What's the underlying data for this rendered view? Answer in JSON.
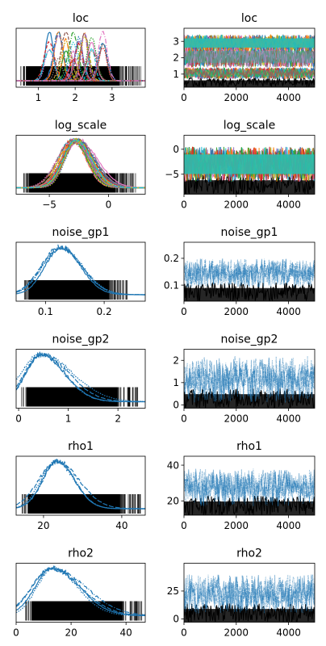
{
  "figure": {
    "title": ""
  },
  "chart_data": [
    {
      "panel": "density",
      "type": "line",
      "title": "loc",
      "x_range": [
        0.4,
        3.9
      ],
      "x_ticks": [
        1,
        2,
        3
      ],
      "y_ticks": [],
      "n_chains": 4,
      "n_components": 8,
      "series_colors": [
        "#1f77b4",
        "#ff7f0e",
        "#2ca02c",
        "#d62728",
        "#9467bd",
        "#8c564b",
        "#e377c2",
        "#7f7f7f",
        "#bcbd22",
        "#17becf"
      ],
      "component_centers": [
        1.3,
        1.55,
        1.75,
        1.95,
        2.1,
        2.25,
        2.45,
        2.75
      ],
      "rug_range": [
        0.5,
        3.8
      ]
    },
    {
      "panel": "trace",
      "type": "line",
      "title": "loc",
      "x_range": [
        0,
        5000
      ],
      "y_range": [
        0.2,
        3.8
      ],
      "x_ticks": [
        0,
        2000,
        4000
      ],
      "y_ticks": [
        1,
        2,
        3
      ],
      "bands": [
        [
          0.7,
          1.4
        ],
        [
          1.4,
          2.7
        ],
        [
          2.4,
          3.4
        ]
      ],
      "divergence_band": [
        0.2,
        0.8
      ]
    },
    {
      "panel": "density",
      "type": "line",
      "title": "log_scale",
      "x_range": [
        -7.8,
        3.1
      ],
      "x_ticks": [
        -5,
        0
      ],
      "y_ticks": [],
      "mean": -2.8,
      "sd": 1.1,
      "series_colors": [
        "#1f77b4",
        "#ff7f0e",
        "#2ca02c",
        "#d62728",
        "#9467bd",
        "#8c564b",
        "#e377c2",
        "#7f7f7f",
        "#bcbd22",
        "#17becf"
      ],
      "rug_range": [
        -7.2,
        2.3
      ]
    },
    {
      "panel": "trace",
      "type": "line",
      "title": "log_scale",
      "x_range": [
        0,
        5000
      ],
      "y_range": [
        -9,
        2.8
      ],
      "x_ticks": [
        0,
        2000,
        4000
      ],
      "y_ticks": [
        -5,
        0
      ],
      "bands": [
        [
          -6.5,
          0.5
        ]
      ],
      "divergence_band": [
        -9,
        -5
      ]
    },
    {
      "panel": "density",
      "type": "line",
      "title": "noise_gp1",
      "x_range": [
        0.05,
        0.27
      ],
      "x_ticks": [
        0.1,
        0.2
      ],
      "y_ticks": [],
      "mean": 0.125,
      "sd": 0.027,
      "series_colors": [
        "#1f77b4"
      ],
      "rug_range": [
        0.062,
        0.24
      ]
    },
    {
      "panel": "trace",
      "type": "line",
      "title": "noise_gp1",
      "x_range": [
        0,
        5000
      ],
      "y_range": [
        0.04,
        0.26
      ],
      "x_ticks": [
        0,
        2000,
        4000
      ],
      "y_ticks": [
        0.1,
        0.2
      ],
      "bands": [
        [
          0.09,
          0.2
        ]
      ],
      "divergence_band": [
        0.04,
        0.11
      ]
    },
    {
      "panel": "density",
      "type": "line",
      "title": "noise_gp2",
      "x_range": [
        -0.05,
        2.55
      ],
      "x_ticks": [
        0,
        1,
        2
      ],
      "y_ticks": [],
      "mean": 0.45,
      "sd": 0.35,
      "series_colors": [
        "#1f77b4"
      ],
      "rug_range": [
        0.05,
        2.4
      ]
    },
    {
      "panel": "trace",
      "type": "line",
      "title": "noise_gp2",
      "x_range": [
        0,
        5000
      ],
      "y_range": [
        -0.15,
        2.5
      ],
      "x_ticks": [
        0,
        2000,
        4000
      ],
      "y_ticks": [
        0,
        1,
        2
      ],
      "bands": [
        [
          0.1,
          2.2
        ]
      ],
      "divergence_band": [
        -0.15,
        0.75
      ]
    },
    {
      "panel": "density",
      "type": "line",
      "title": "rho1",
      "x_range": [
        13,
        46
      ],
      "x_ticks": [
        20,
        40
      ],
      "y_ticks": [],
      "mean": 23.5,
      "sd": 4.2,
      "series_colors": [
        "#1f77b4"
      ],
      "rug_range": [
        14.5,
        45
      ]
    },
    {
      "panel": "trace",
      "type": "line",
      "title": "rho1",
      "x_range": [
        0,
        5000
      ],
      "y_range": [
        12,
        45
      ],
      "x_ticks": [
        0,
        2000,
        4000
      ],
      "y_ticks": [
        20,
        40
      ],
      "bands": [
        [
          17,
          38
        ]
      ],
      "divergence_band": [
        12,
        23
      ]
    },
    {
      "panel": "density",
      "type": "line",
      "title": "rho2",
      "x_range": [
        0,
        47
      ],
      "x_ticks": [
        0,
        20,
        40
      ],
      "y_ticks": [],
      "mean": 13,
      "sd": 7,
      "series_colors": [
        "#1f77b4"
      ],
      "rug_range": [
        3.5,
        46
      ]
    },
    {
      "panel": "trace",
      "type": "line",
      "title": "rho2",
      "x_range": [
        0,
        5000
      ],
      "y_range": [
        -3,
        50
      ],
      "x_ticks": [
        0,
        2000,
        4000
      ],
      "y_ticks": [
        0,
        25
      ],
      "bands": [
        [
          5,
          40
        ]
      ],
      "divergence_band": [
        -3,
        14
      ]
    }
  ]
}
